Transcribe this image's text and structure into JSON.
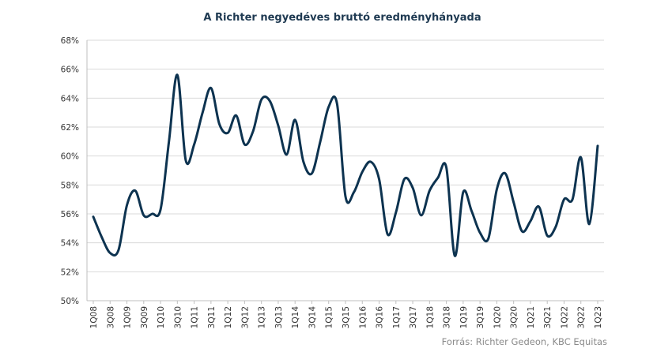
{
  "chart_data": {
    "type": "line",
    "title": "A Richter negyedéves bruttó eredményhányada",
    "source": "Forrás: Richter Gedeon, KBC Equitas",
    "ylim": [
      50,
      68
    ],
    "ytick_values": [
      50,
      52,
      54,
      56,
      58,
      60,
      62,
      64,
      66,
      68
    ],
    "ytick_labels": [
      "50%",
      "52%",
      "54%",
      "56%",
      "58%",
      "60%",
      "62%",
      "64%",
      "66%",
      "68%"
    ],
    "grid": true,
    "line_color": "#0d3350",
    "x": [
      "1Q08",
      "2Q08",
      "3Q08",
      "4Q08",
      "1Q09",
      "2Q09",
      "3Q09",
      "4Q09",
      "1Q10",
      "2Q10",
      "3Q10",
      "4Q10",
      "1Q11",
      "2Q11",
      "3Q11",
      "4Q11",
      "1Q12",
      "2Q12",
      "3Q12",
      "4Q12",
      "1Q13",
      "2Q13",
      "3Q13",
      "4Q13",
      "1Q14",
      "2Q14",
      "3Q14",
      "4Q14",
      "1Q15",
      "2Q15",
      "3Q15",
      "4Q15",
      "1Q16",
      "2Q16",
      "3Q16",
      "4Q16",
      "1Q17",
      "2Q17",
      "3Q17",
      "4Q17",
      "1Q18",
      "2Q18",
      "3Q18",
      "4Q18",
      "1Q19",
      "2Q19",
      "3Q19",
      "4Q19",
      "1Q20",
      "2Q20",
      "3Q20",
      "4Q20",
      "1Q21",
      "2Q21",
      "3Q21",
      "4Q21",
      "1Q22",
      "2Q22",
      "3Q22",
      "4Q22",
      "1Q23"
    ],
    "x_tick_labels": [
      "1Q08",
      "3Q08",
      "1Q09",
      "3Q09",
      "1Q10",
      "3Q10",
      "1Q11",
      "3Q11",
      "1Q12",
      "3Q12",
      "1Q13",
      "3Q13",
      "1Q14",
      "3Q14",
      "1Q15",
      "3Q15",
      "1Q16",
      "3Q16",
      "1Q17",
      "3Q17",
      "1Q18",
      "3Q18",
      "1Q19",
      "3Q19",
      "1Q20",
      "3Q20",
      "1Q21",
      "3Q21",
      "1Q22",
      "3Q22",
      "1Q23"
    ],
    "series": [
      {
        "values": [
          55.8,
          54.4,
          53.3,
          53.5,
          56.6,
          57.6,
          55.9,
          56.0,
          56.3,
          61.0,
          65.6,
          59.7,
          60.8,
          63.0,
          64.7,
          62.2,
          61.6,
          62.8,
          60.8,
          61.7,
          63.9,
          63.8,
          62.1,
          60.1,
          62.5,
          59.6,
          58.8,
          61.0,
          63.4,
          63.6,
          57.2,
          57.5,
          58.9,
          59.6,
          58.4,
          54.6,
          56.1,
          58.4,
          57.8,
          55.9,
          57.6,
          58.5,
          59.2,
          53.1,
          57.5,
          56.2,
          54.7,
          54.3,
          57.7,
          58.8,
          56.8,
          54.8,
          55.5,
          56.5,
          54.5,
          55.1,
          57.0,
          57.0,
          59.9,
          55.3,
          60.7
        ]
      }
    ]
  }
}
